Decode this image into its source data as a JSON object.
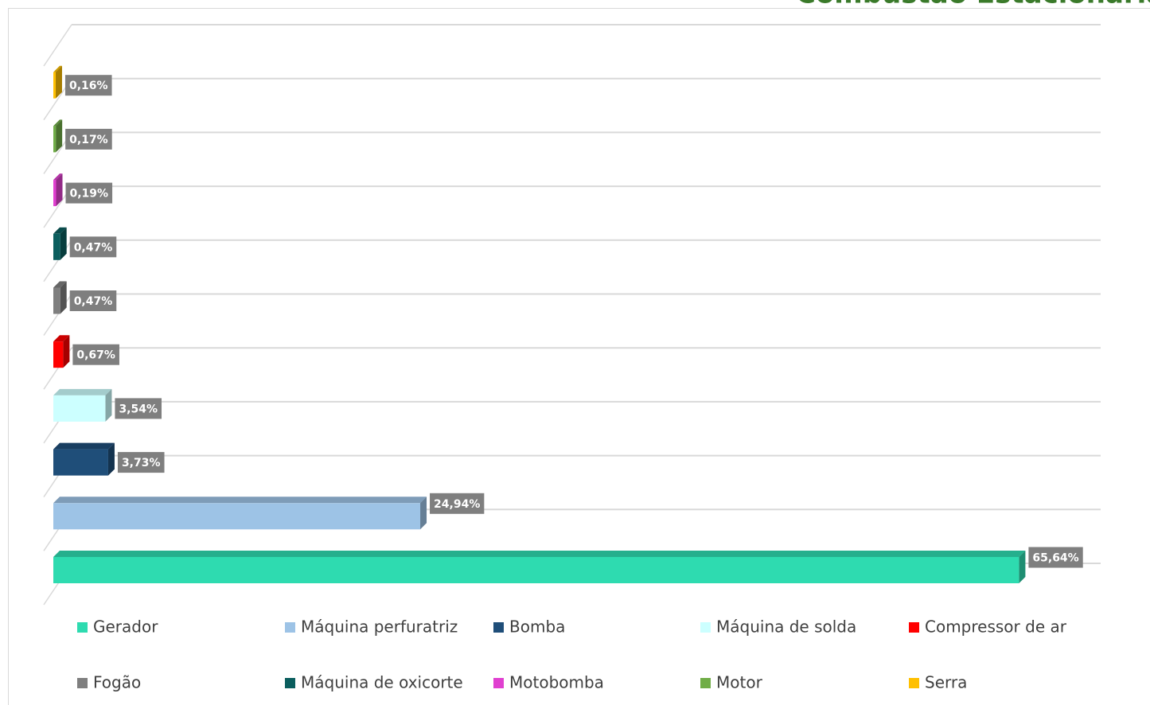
{
  "chart_data": {
    "type": "bar3d",
    "title": "Combustão Estacionária",
    "categories": [
      "Gerador",
      "Máquina perfuratriz",
      "Bomba",
      "Máquina de solda",
      "Compressor de ar",
      "Fogão",
      "Máquina de oxicorte",
      "Motobomba",
      "Motor",
      "Serra"
    ],
    "values": [
      65.64,
      24.94,
      3.73,
      3.54,
      0.67,
      0.47,
      0.47,
      0.19,
      0.17,
      0.16
    ],
    "value_labels": [
      "65,64%",
      "24,94%",
      "3,73%",
      "3,54%",
      "0,67%",
      "0,47%",
      "0,47%",
      "0,19%",
      "0,17%",
      "0,16%"
    ],
    "colors": [
      "#2edbb0",
      "#9dc3e6",
      "#1f4e79",
      "#ccffff",
      "#ff0000",
      "#7f7f7f",
      "#0b5e5e",
      "#e040d0",
      "#70ad47",
      "#ffc000"
    ],
    "xlim": [
      0,
      70
    ],
    "legend": "bottom"
  }
}
